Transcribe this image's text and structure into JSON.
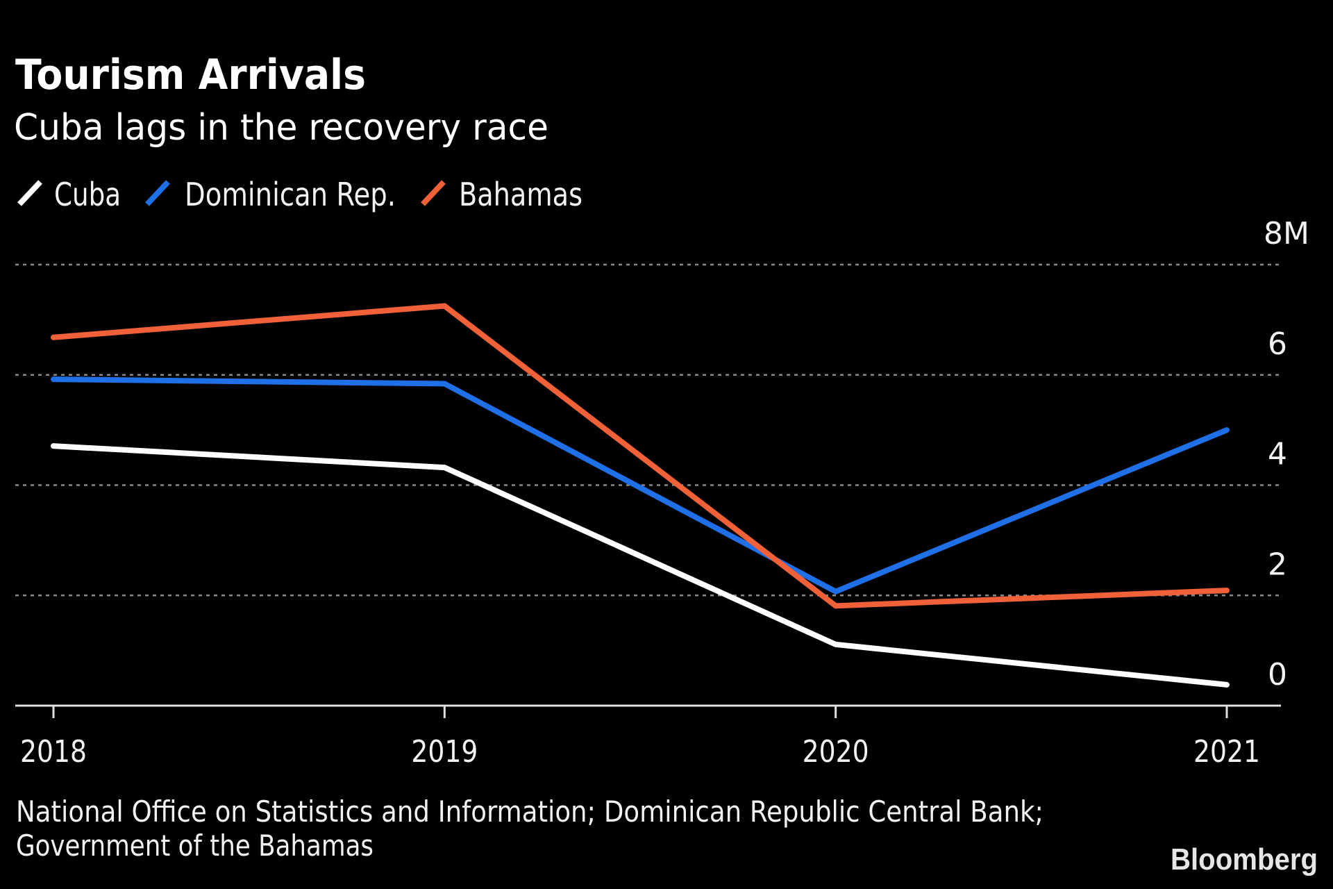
{
  "header": {
    "title": "Tourism Arrivals",
    "subtitle": "Cuba lags in the recovery race"
  },
  "footer": {
    "source_lines": [
      "National Office on Statistics and Information; Dominican Republic Central Bank;",
      "Government of the Bahamas"
    ],
    "logo": "Bloomberg"
  },
  "chart_data": {
    "type": "line",
    "title": "Tourism Arrivals",
    "subtitle": "Cuba lags in the recovery race",
    "xlabel": "",
    "ylabel": "",
    "x": [
      "2018",
      "2019",
      "2020",
      "2021"
    ],
    "ylim": [
      0,
      8
    ],
    "yticks": [
      0,
      2,
      4,
      6,
      8
    ],
    "ytick_labels": [
      "0",
      "2",
      "4",
      "6",
      "8M"
    ],
    "y_unit": "millions of arrivals",
    "grid": true,
    "legend_position": "top-left",
    "series": [
      {
        "name": "Cuba",
        "color": "#ffffff",
        "values": [
          4.71,
          4.32,
          1.11,
          0.38
        ]
      },
      {
        "name": "Dominican Rep.",
        "color": "#1f6fe6",
        "values": [
          5.92,
          5.84,
          2.07,
          5.0
        ]
      },
      {
        "name": "Bahamas",
        "color": "#f0613a",
        "values": [
          6.68,
          7.25,
          1.81,
          2.09
        ]
      }
    ],
    "source": "National Office on Statistics and Information; Dominican Republic Central Bank; Government of the Bahamas"
  }
}
